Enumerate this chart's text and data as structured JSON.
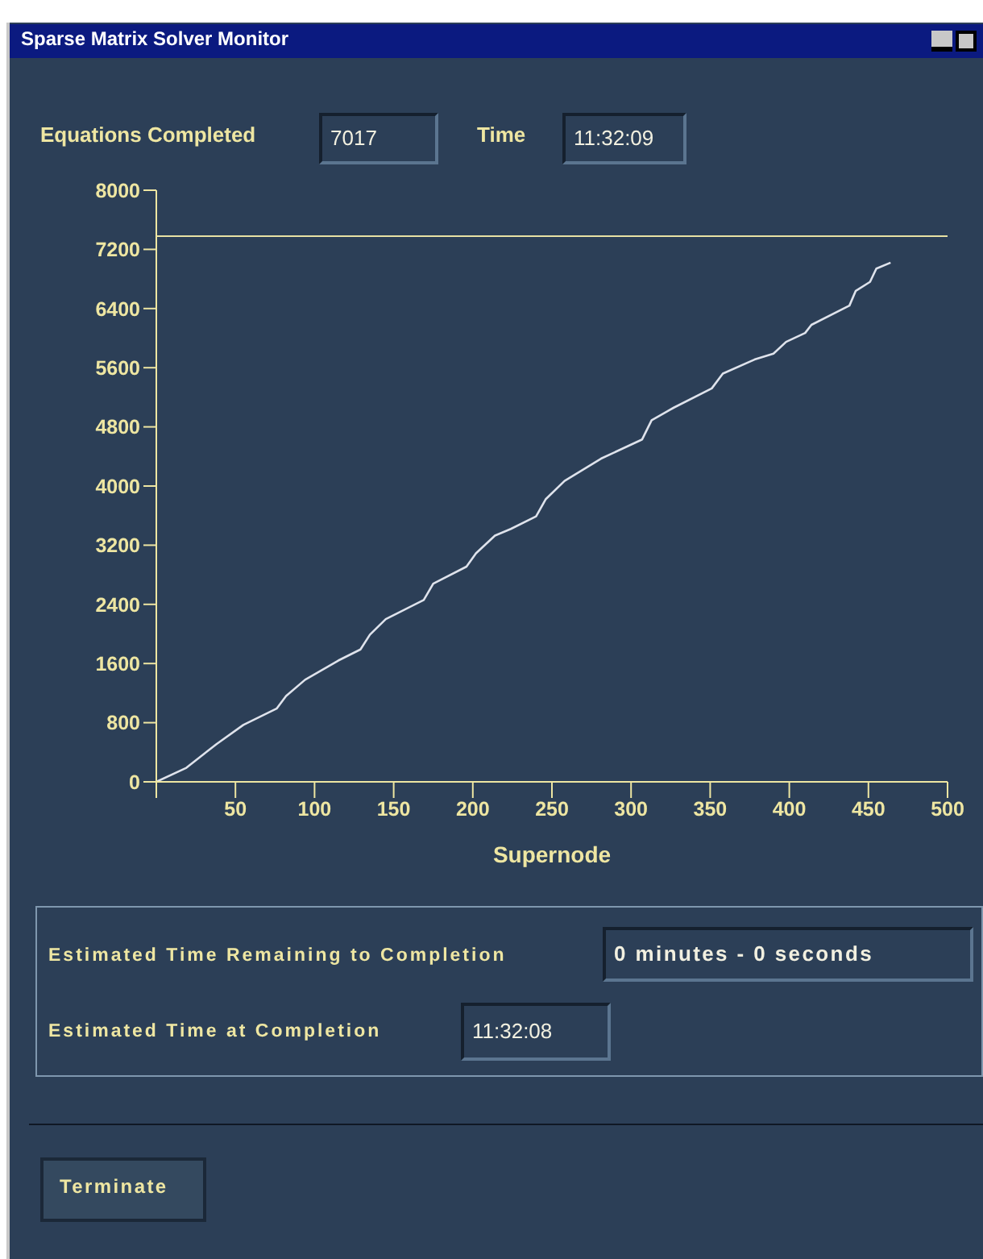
{
  "chart_data": {
    "type": "line",
    "title": "Sparse Matrix Solver Monitor",
    "xlabel": "Supernode",
    "x": [
      0,
      19,
      38,
      55,
      76,
      82,
      94,
      115,
      129,
      135,
      145,
      169,
      175,
      196,
      202,
      214,
      224,
      240,
      246,
      258,
      281,
      307,
      313,
      327,
      351,
      358,
      378,
      390,
      398,
      410,
      414,
      438,
      442,
      451,
      455,
      464
    ],
    "series": [
      {
        "color": "#dfe3ec",
        "values": [
          0,
          190,
          510,
          770,
          990,
          1160,
          1380,
          1640,
          1790,
          1990,
          2200,
          2460,
          2680,
          2910,
          3090,
          3330,
          3420,
          3590,
          3820,
          4070,
          4370,
          4630,
          4890,
          5060,
          5320,
          5520,
          5710,
          5790,
          5950,
          6070,
          6180,
          6440,
          6640,
          6760,
          6940,
          7020
        ]
      }
    ],
    "xlim": [
      0,
      500
    ],
    "xticks": [
      {
        "value": 0,
        "label": null
      },
      50,
      100,
      150,
      200,
      250,
      300,
      350,
      400,
      450,
      500
    ],
    "ylim": [
      0,
      8000
    ],
    "yticks": [
      0,
      800,
      1600,
      2400,
      3200,
      4000,
      4800,
      5600,
      6400,
      7200,
      8000
    ],
    "ref_lines": [
      {
        "axis": "y",
        "value": 7380,
        "color": "#e8e2a4"
      }
    ],
    "grid": false,
    "legend": false,
    "marker": "none",
    "line_style": "solid",
    "annotations": [
      "Equations Completed",
      "7017",
      "Time",
      "11:32:09",
      "Estimated Time Remaining to Completion",
      "0 minutes - 0 seconds",
      "Estimated Time at Completion",
      "11:32:08",
      "Terminate"
    ]
  }
}
